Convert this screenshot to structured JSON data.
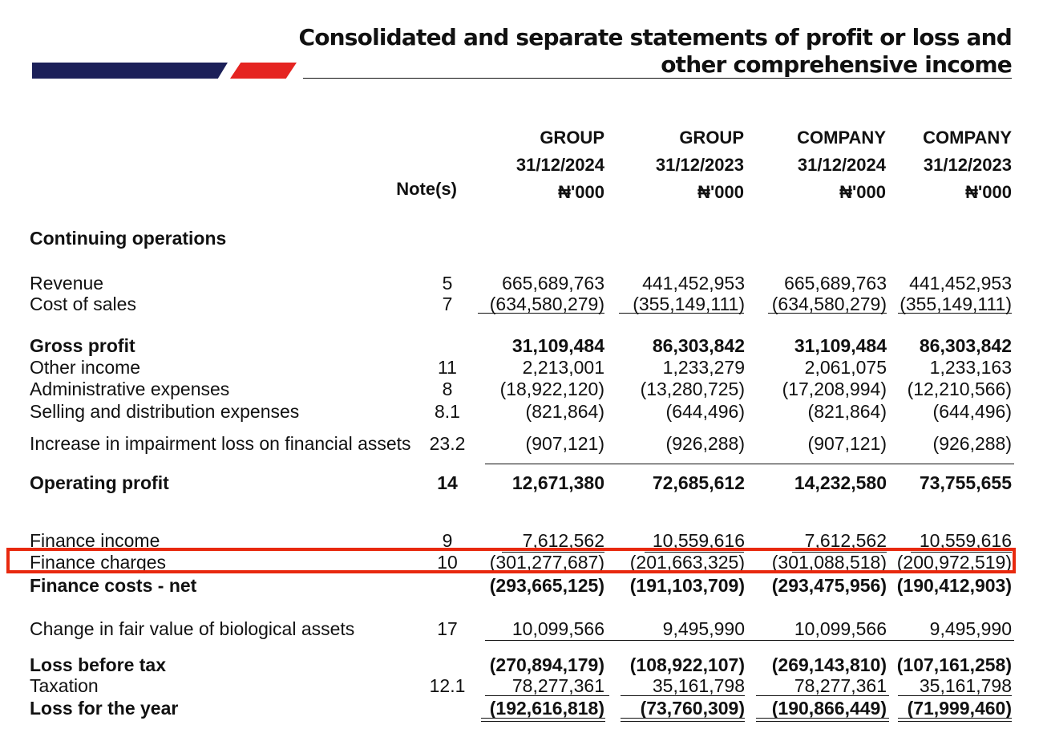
{
  "title": {
    "line1": "Consolidated and separate statements of profit or loss and",
    "line2": "other comprehensive income"
  },
  "brand_colors": {
    "navy": "#1c2059",
    "red": "#e52421"
  },
  "header": {
    "note_label": "Note(s)",
    "columns": [
      {
        "entity": "GROUP",
        "date": "31/12/2024",
        "unit": "₦'000"
      },
      {
        "entity": "GROUP",
        "date": "31/12/2023",
        "unit": "₦'000"
      },
      {
        "entity": "COMPANY",
        "date": "31/12/2024",
        "unit": "₦'000"
      },
      {
        "entity": "COMPANY",
        "date": "31/12/2023",
        "unit": "₦'000"
      }
    ]
  },
  "section_title": "Continuing operations",
  "rows": [
    {
      "label": "Revenue",
      "note": "5",
      "values": [
        "665,689,763",
        "441,452,953",
        "665,689,763",
        "441,452,953"
      ],
      "bold": false
    },
    {
      "label": "Cost of sales",
      "note": "7",
      "values": [
        "(634,580,279)",
        "(355,149,111)",
        "(634,580,279)",
        "(355,149,111)"
      ],
      "bold": false
    },
    {
      "label": "Gross profit",
      "note": "",
      "values": [
        "31,109,484",
        "86,303,842",
        "31,109,484",
        "86,303,842"
      ],
      "bold": true
    },
    {
      "label": "Other income",
      "note": "11",
      "values": [
        "2,213,001",
        "1,233,279",
        "2,061,075",
        "1,233,163"
      ],
      "bold": false
    },
    {
      "label": "Administrative expenses",
      "note": "8",
      "values": [
        "(18,922,120)",
        "(13,280,725)",
        "(17,208,994)",
        "(12,210,566)"
      ],
      "bold": false
    },
    {
      "label": "Selling and distribution expenses",
      "note": "8.1",
      "values": [
        "(821,864)",
        "(644,496)",
        "(821,864)",
        "(644,496)"
      ],
      "bold": false
    },
    {
      "label": "Increase in impairment loss on financial assets",
      "note": "23.2",
      "values": [
        "(907,121)",
        "(926,288)",
        "(907,121)",
        "(926,288)"
      ],
      "bold": false
    },
    {
      "label": "Operating profit",
      "note": "14",
      "values": [
        "12,671,380",
        "72,685,612",
        "14,232,580",
        "73,755,655"
      ],
      "bold": true
    },
    {
      "label": "Finance income",
      "note": "9",
      "values": [
        "7,612,562",
        "10,559,616",
        "7,612,562",
        "10,559,616"
      ],
      "bold": false
    },
    {
      "label": "Finance charges",
      "note": "10",
      "values": [
        "(301,277,687)",
        "(201,663,325)",
        "(301,088,518)",
        "(200,972,519)"
      ],
      "bold": false
    },
    {
      "label": "Finance costs - net",
      "note": "",
      "values": [
        "(293,665,125)",
        "(191,103,709)",
        "(293,475,956)",
        "(190,412,903)"
      ],
      "bold": true
    },
    {
      "label": "Change in fair value of biological assets",
      "note": "17",
      "values": [
        "10,099,566",
        "9,495,990",
        "10,099,566",
        "9,495,990"
      ],
      "bold": false
    },
    {
      "label": "Loss before tax",
      "note": "",
      "values": [
        "(270,894,179)",
        "(108,922,107)",
        "(269,143,810)",
        "(107,161,258)"
      ],
      "bold": true
    },
    {
      "label": "Taxation",
      "note": "12.1",
      "values": [
        "78,277,361",
        "35,161,798",
        "78,277,361",
        "35,161,798"
      ],
      "bold": false
    },
    {
      "label": "Loss for the year",
      "note": "",
      "values": [
        "(192,616,818)",
        "(73,760,309)",
        "(190,866,449)",
        "(71,999,460)"
      ],
      "bold": true
    }
  ],
  "highlighted_row": "Finance charges"
}
